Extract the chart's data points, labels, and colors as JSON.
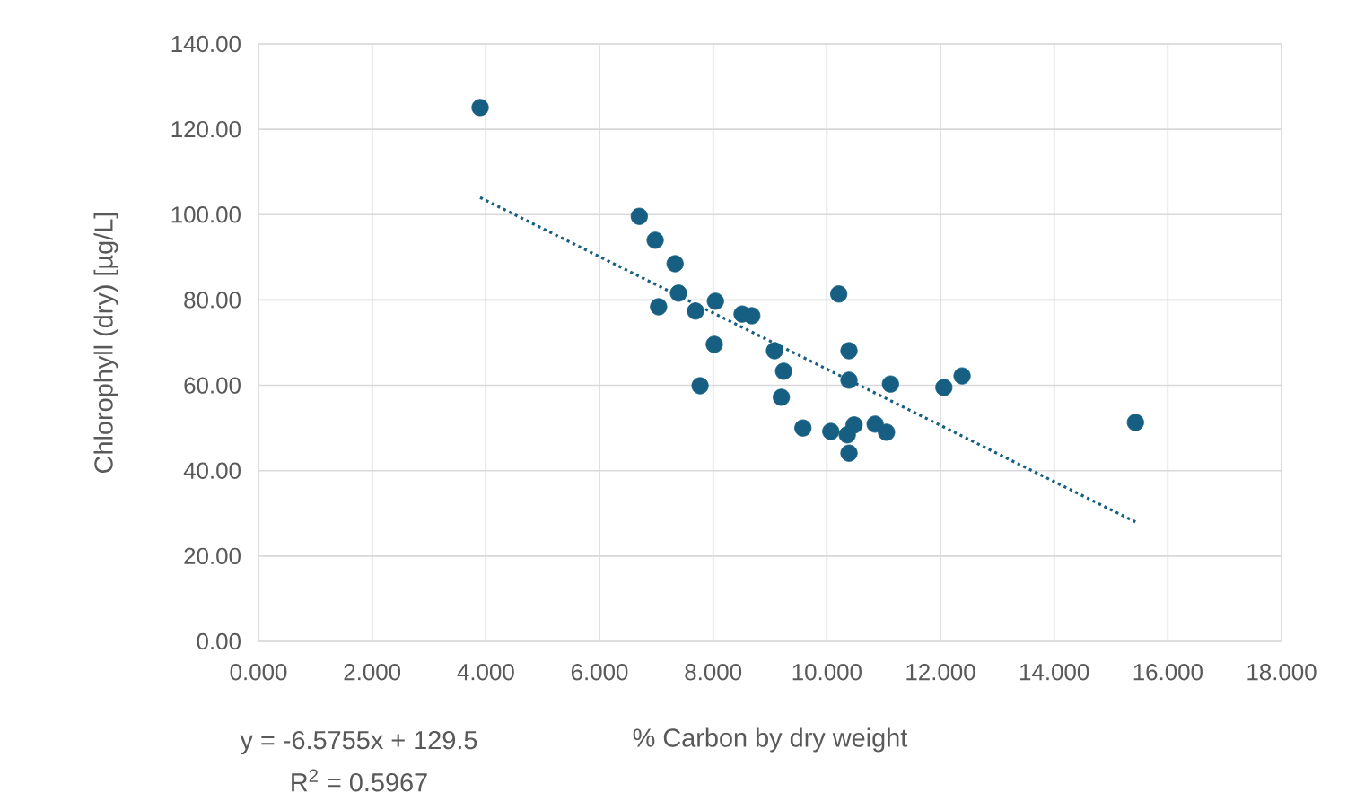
{
  "chart_data": {
    "type": "scatter",
    "xlabel": "% Carbon by dry weight",
    "ylabel": "Chlorophyll (dry) [µg/L]",
    "xlim": [
      0,
      18
    ],
    "ylim": [
      0,
      140
    ],
    "xticks": [
      {
        "value": 0,
        "label": "0.000"
      },
      {
        "value": 2,
        "label": "2.000"
      },
      {
        "value": 4,
        "label": "4.000"
      },
      {
        "value": 6,
        "label": "6.000"
      },
      {
        "value": 8,
        "label": "8.000"
      },
      {
        "value": 10,
        "label": "10.000"
      },
      {
        "value": 12,
        "label": "12.000"
      },
      {
        "value": 14,
        "label": "14.000"
      },
      {
        "value": 16,
        "label": "16.000"
      },
      {
        "value": 18,
        "label": "18.000"
      }
    ],
    "yticks": [
      {
        "value": 0,
        "label": "0.00"
      },
      {
        "value": 20,
        "label": "20.00"
      },
      {
        "value": 40,
        "label": "40.00"
      },
      {
        "value": 60,
        "label": "60.00"
      },
      {
        "value": 80,
        "label": "80.00"
      },
      {
        "value": 100,
        "label": "100.00"
      },
      {
        "value": 120,
        "label": "120.00"
      },
      {
        "value": 140,
        "label": "140.00"
      }
    ],
    "grid": true,
    "series": [
      {
        "color": "#165f82",
        "marker": "circle",
        "x": [
          3.9,
          6.7,
          6.98,
          7.33,
          7.39,
          7.04,
          7.69,
          8.04,
          8.51,
          8.68,
          8.02,
          7.77,
          9.08,
          9.24,
          9.2,
          9.58,
          10.21,
          10.39,
          10.39,
          11.12,
          12.06,
          12.38,
          10.07,
          10.36,
          10.48,
          10.39,
          10.85,
          11.05,
          15.43
        ],
        "values": [
          125.1,
          99.6,
          94.0,
          88.5,
          81.6,
          78.4,
          77.4,
          79.7,
          76.7,
          76.3,
          69.6,
          59.9,
          68.1,
          63.3,
          57.2,
          50.0,
          81.4,
          68.1,
          61.2,
          60.3,
          59.5,
          62.2,
          49.2,
          48.4,
          50.7,
          44.1,
          50.9,
          49.0,
          51.3
        ]
      },
      {
        "type": "line",
        "color": "#165f82",
        "line_style": "dotted",
        "marker": "none",
        "x": [
          3.9,
          15.43
        ],
        "values": [
          104.0,
          28.0
        ]
      }
    ],
    "annotations": [
      "y = -6.5755x + 129.5",
      "R$^{2}$ = 0.5967"
    ]
  }
}
